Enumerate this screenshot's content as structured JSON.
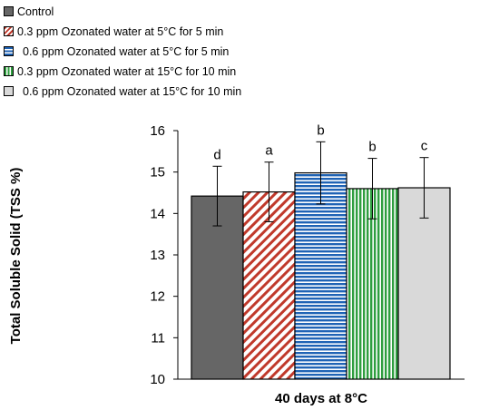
{
  "chart_data": {
    "type": "bar",
    "title": "",
    "xlabel": "40 days at 8°C",
    "ylabel": "Total Soluble Solid (TSS %)",
    "ylim": [
      10,
      16
    ],
    "yticks": [
      10,
      11,
      12,
      13,
      14,
      15,
      16
    ],
    "grid": false,
    "legend_position": "top-left",
    "series": [
      {
        "name": "Control",
        "value": 14.42,
        "error": 0.72,
        "letter": "d",
        "pattern": "solid-dark-gray",
        "color": "#666666"
      },
      {
        "name": "0.3 ppm Ozonated water at 5°C for 5 min",
        "value": 14.52,
        "error": 0.72,
        "letter": "a",
        "pattern": "diagonal-red-stripes",
        "color": "#c0392b"
      },
      {
        "name": "0.6 ppm Ozonated water at 5°C for 5 min",
        "value": 14.98,
        "error": 0.75,
        "letter": "b",
        "pattern": "horizontal-blue-stripes",
        "color": "#1f63b5"
      },
      {
        "name": "0.3 ppm Ozonated water at 15°C for 10 min",
        "value": 14.6,
        "error": 0.73,
        "letter": "b",
        "pattern": "vertical-green-stripes",
        "color": "#2e9e3e"
      },
      {
        "name": "0.6 ppm Ozonated water at 15°C for 10 min",
        "value": 14.62,
        "error": 0.73,
        "letter": "c",
        "pattern": "solid-light-gray",
        "color": "#d9d9d9"
      }
    ]
  }
}
